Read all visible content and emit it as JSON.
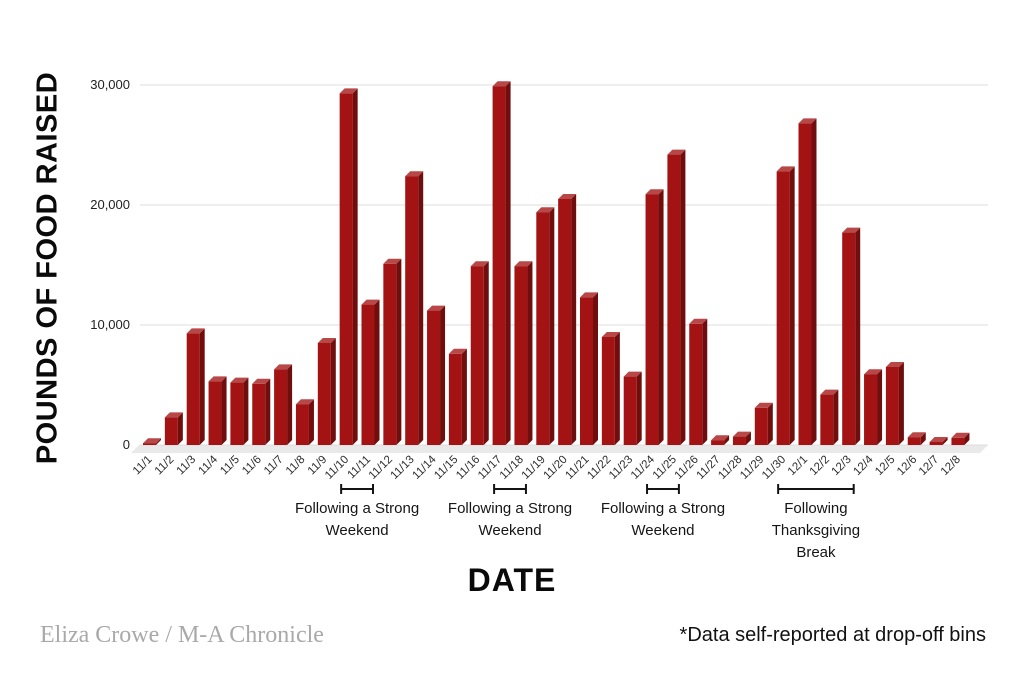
{
  "chart_data": {
    "type": "bar",
    "title": "",
    "xlabel": "DATE",
    "ylabel": "POUNDS OF FOOD RAISED",
    "categories": [
      "11/1",
      "11/2",
      "11/3",
      "11/4",
      "11/5",
      "11/6",
      "11/7",
      "11/8",
      "11/9",
      "11/10",
      "11/11",
      "11/12",
      "11/13",
      "11/14",
      "11/15",
      "11/16",
      "11/17",
      "11/18",
      "11/19",
      "11/20",
      "11/21",
      "11/22",
      "11/23",
      "11/24",
      "11/25",
      "11/26",
      "11/27",
      "11/28",
      "11/29",
      "11/30",
      "12/1",
      "12/2",
      "12/3",
      "12/4",
      "12/5",
      "12/6",
      "12/7",
      "12/8"
    ],
    "values": [
      150,
      2300,
      9300,
      5300,
      5200,
      5100,
      6300,
      3400,
      8500,
      29300,
      11700,
      15100,
      22400,
      11200,
      7600,
      14900,
      29900,
      14900,
      19400,
      20500,
      12300,
      9000,
      5700,
      20900,
      24200,
      10100,
      400,
      700,
      3100,
      22800,
      26800,
      4200,
      17700,
      5900,
      6500,
      650,
      250,
      600
    ],
    "ylim": [
      0,
      30000
    ],
    "yticks": [
      0,
      10000,
      20000,
      30000
    ],
    "ytick_labels": [
      "0",
      "10,000",
      "20,000",
      "30,000"
    ],
    "grid": "horizontal",
    "legend": "none",
    "colors": {
      "bar_front": "#a31313",
      "bar_side": "#700e0e",
      "bar_top": "#b84848",
      "floor": "#e9e9e9",
      "gridline": "#dcdcdc",
      "tick_text": "#2e2e2e",
      "annotation_text": "#151515",
      "bracket": "#141414"
    },
    "annotations": [
      {
        "lines": [
          "Following a Strong",
          "Weekend"
        ],
        "start": "11/10",
        "end": "11/11"
      },
      {
        "lines": [
          "Following a Strong",
          "Weekend"
        ],
        "start": "11/17",
        "end": "11/18"
      },
      {
        "lines": [
          "Following a Strong",
          "Weekend"
        ],
        "start": "11/24",
        "end": "11/25"
      },
      {
        "lines": [
          "Following",
          "Thanksgiving",
          "Break"
        ],
        "start": "11/30",
        "end": "12/3"
      }
    ]
  },
  "footer": {
    "credit": "Eliza Crowe / M-A Chronicle",
    "footnote": "*Data self-reported at drop-off bins"
  }
}
